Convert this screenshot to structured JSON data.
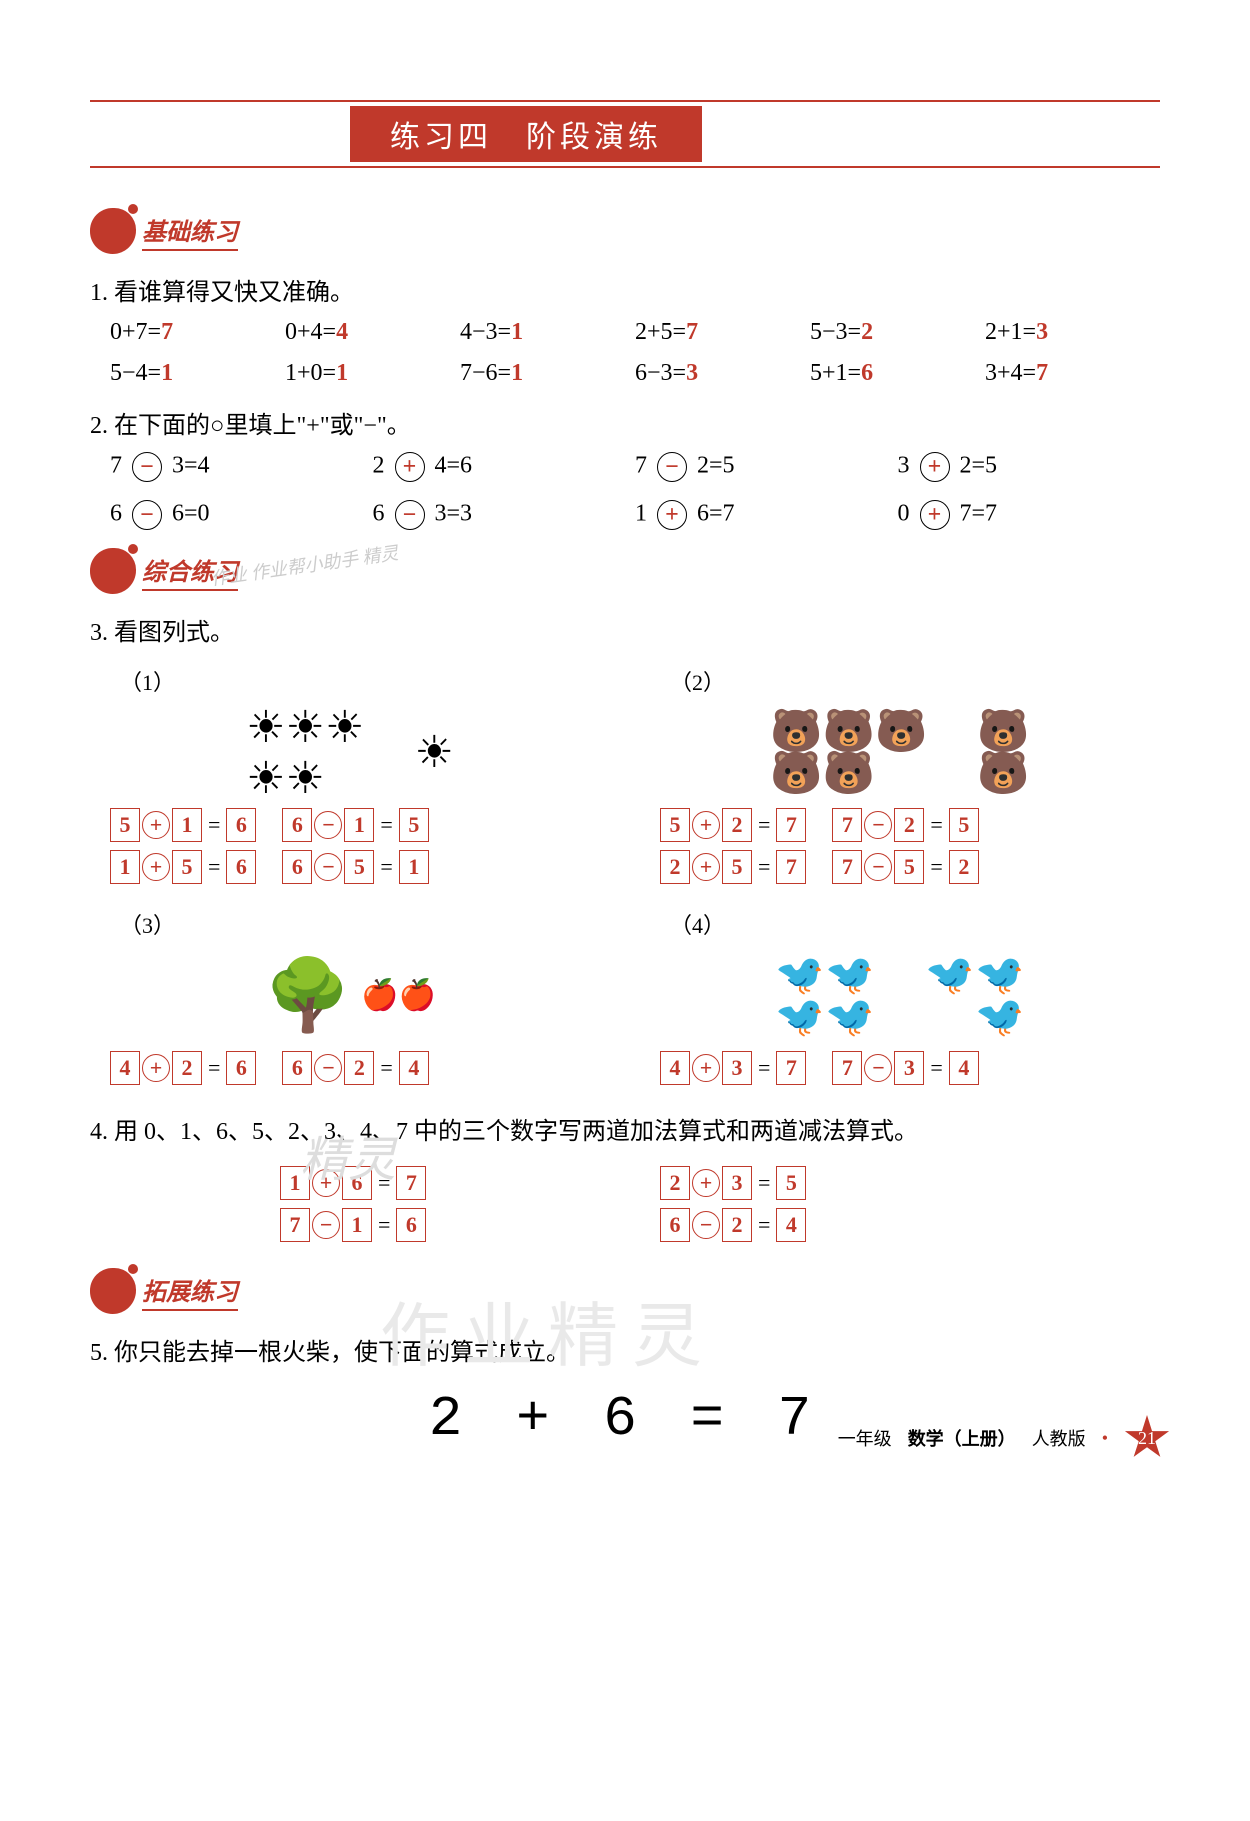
{
  "colors": {
    "accent": "#c0392b",
    "text": "#000000",
    "bg": "#ffffff",
    "wm": "#cccccc"
  },
  "title": "练习四　阶段演练",
  "sections": {
    "s1": "基础练习",
    "s2": "综合练习",
    "s3": "拓展练习"
  },
  "q1": {
    "prompt": "1. 看谁算得又快又准确。",
    "items": [
      {
        "expr": "0+7=",
        "ans": "7"
      },
      {
        "expr": "0+4=",
        "ans": "4"
      },
      {
        "expr": "4−3=",
        "ans": "1"
      },
      {
        "expr": "2+5=",
        "ans": "7"
      },
      {
        "expr": "5−3=",
        "ans": "2"
      },
      {
        "expr": "2+1=",
        "ans": "3"
      },
      {
        "expr": "5−4=",
        "ans": "1"
      },
      {
        "expr": "1+0=",
        "ans": "1"
      },
      {
        "expr": "7−6=",
        "ans": "1"
      },
      {
        "expr": "6−3=",
        "ans": "3"
      },
      {
        "expr": "5+1=",
        "ans": "6"
      },
      {
        "expr": "3+4=",
        "ans": "7"
      }
    ]
  },
  "q2": {
    "prompt": "2. 在下面的○里填上\"+\"或\"−\"。",
    "items": [
      {
        "a": "7",
        "op": "−",
        "b": "3=4"
      },
      {
        "a": "2",
        "op": "+",
        "b": "4=6"
      },
      {
        "a": "7",
        "op": "−",
        "b": "2=5"
      },
      {
        "a": "3",
        "op": "+",
        "b": "2=5"
      },
      {
        "a": "6",
        "op": "−",
        "b": "6=0"
      },
      {
        "a": "6",
        "op": "−",
        "b": "3=3"
      },
      {
        "a": "1",
        "op": "+",
        "b": "6=7"
      },
      {
        "a": "0",
        "op": "+",
        "b": "7=7"
      }
    ]
  },
  "q3": {
    "prompt": "3. 看图列式。",
    "sub": {
      "p1": "（1）",
      "p2": "（2）",
      "p3": "（3）",
      "p4": "（4）"
    },
    "p1": [
      [
        "5",
        "+",
        "1",
        "=",
        "6"
      ],
      [
        "6",
        "−",
        "1",
        "=",
        "5"
      ],
      [
        "1",
        "+",
        "5",
        "=",
        "6"
      ],
      [
        "6",
        "−",
        "5",
        "=",
        "1"
      ]
    ],
    "p2": [
      [
        "5",
        "+",
        "2",
        "=",
        "7"
      ],
      [
        "7",
        "−",
        "2",
        "=",
        "5"
      ],
      [
        "2",
        "+",
        "5",
        "=",
        "7"
      ],
      [
        "7",
        "−",
        "5",
        "=",
        "2"
      ]
    ],
    "p3": [
      [
        "4",
        "+",
        "2",
        "=",
        "6"
      ],
      [
        "6",
        "−",
        "2",
        "=",
        "4"
      ]
    ],
    "p4": [
      [
        "4",
        "+",
        "3",
        "=",
        "7"
      ],
      [
        "7",
        "−",
        "3",
        "=",
        "4"
      ]
    ]
  },
  "q4": {
    "prompt": "4. 用 0、1、6、5、2、3、4、7 中的三个数字写两道加法算式和两道减法算式。",
    "left": [
      [
        "1",
        "+",
        "6",
        "=",
        "7"
      ],
      [
        "7",
        "−",
        "1",
        "=",
        "6"
      ]
    ],
    "right": [
      [
        "2",
        "+",
        "3",
        "=",
        "5"
      ],
      [
        "6",
        "−",
        "2",
        "=",
        "4"
      ]
    ]
  },
  "q5": {
    "prompt": "5. 你只能去掉一根火柴，使下面的算式成立。",
    "match": "2 + 6 = 7"
  },
  "watermarks": {
    "small": "作业\n作业帮小助手\n精灵",
    "mid": "精灵",
    "big": "作业精灵"
  },
  "footer": {
    "grade": "一年级",
    "subject": "数学（上册）",
    "ver": "人教版",
    "page": "21"
  }
}
